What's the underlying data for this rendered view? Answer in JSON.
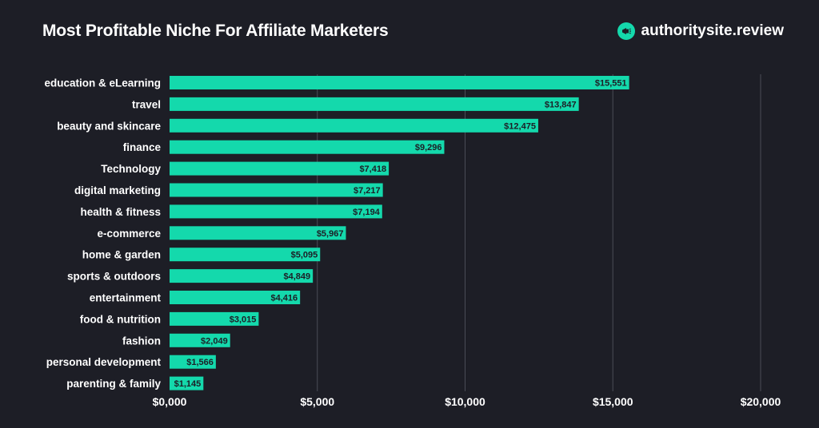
{
  "header": {
    "title": "Most Profitable Niche For Affiliate Marketers",
    "brand": "authoritysite.review",
    "brand_icon": "megaphone-icon"
  },
  "colors": {
    "background": "#1d1e26",
    "bar": "#14d9ac",
    "grid": "#4a4c57",
    "text": "#ffffff"
  },
  "chart_data": {
    "type": "bar",
    "orientation": "horizontal",
    "title": "Most Profitable Niche For Affiliate Marketers",
    "categories": [
      "education & eLearning",
      "travel",
      "beauty and skincare",
      "finance",
      "Technology",
      "digital marketing",
      "health & fitness",
      "e-commerce",
      "home & garden",
      "sports & outdoors",
      "entertainment",
      "food & nutrition",
      "fashion",
      "personal development",
      "parenting & family"
    ],
    "values": [
      15551,
      13847,
      12475,
      9296,
      7418,
      7217,
      7194,
      5967,
      5095,
      4849,
      4416,
      3015,
      2049,
      1566,
      1145
    ],
    "value_labels": [
      "$15,551",
      "$13,847",
      "$12,475",
      "$9,296",
      "$7,418",
      "$7,217",
      "$7,194",
      "$5,967",
      "$5,095",
      "$4,849",
      "$4,416",
      "$3,015",
      "$2,049",
      "$1,566",
      "$1,145"
    ],
    "xlim": [
      0,
      20000
    ],
    "xticks": [
      0,
      5000,
      10000,
      15000,
      20000
    ],
    "xtick_labels": [
      "$0,000",
      "$5,000",
      "$10,000",
      "$15,000",
      "$20,000"
    ],
    "xlabel": "",
    "ylabel": "",
    "grid": "vertical",
    "legend": "none"
  }
}
